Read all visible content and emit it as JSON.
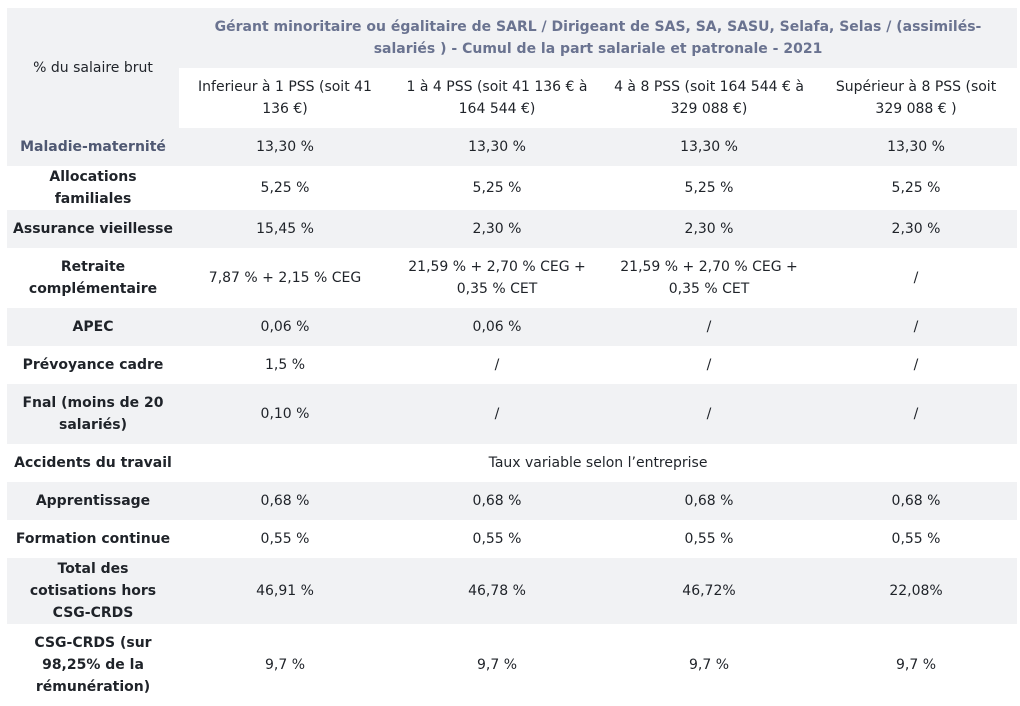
{
  "table": {
    "corner_label": "% du salaire brut",
    "main_header": "Gérant minoritaire ou égalitaire de SARL / Dirigeant de SAS, SA, SASU, Selafa, Selas / (assimilés-salariés ) - Cumul de la part salariale et patronale - 2021",
    "columns": [
      "Inferieur à 1 PSS (soit 41 136 €)",
      "1 à 4 PSS (soit 41 136 € à 164 544 €)",
      "4 à 8 PSS (soit 164 544 € à 329 088 €)",
      "Supérieur à 8 PSS (soit 329 088 € )"
    ],
    "rows": [
      {
        "label": "Maladie-maternité",
        "values": [
          "13,30 %",
          "13,30 %",
          "13,30 %",
          "13,30 %"
        ]
      },
      {
        "label": "Allocations familiales",
        "values": [
          "5,25 %",
          "5,25 %",
          "5,25 %",
          "5,25 %"
        ]
      },
      {
        "label": "Assurance vieillesse",
        "values": [
          "15,45 %",
          "2,30 %",
          "2,30 %",
          "2,30 %"
        ]
      },
      {
        "label": "Retraite complémentaire",
        "values": [
          "7,87 % + 2,15 % CEG",
          "21,59 % + 2,70 % CEG + 0,35 % CET",
          "21,59 % + 2,70 % CEG + 0,35 % CET",
          "/"
        ]
      },
      {
        "label": "APEC",
        "values": [
          "0,06 %",
          "0,06 %",
          "/",
          "/"
        ]
      },
      {
        "label": "Prévoyance cadre",
        "values": [
          "1,5 %",
          "/",
          "/",
          "/"
        ]
      },
      {
        "label": "Fnal (moins de 20 salariés)",
        "values": [
          "0,10 %",
          "/",
          "/",
          "/"
        ]
      },
      {
        "label": "Accidents du travail",
        "merged_value": "Taux variable selon l’entreprise"
      },
      {
        "label": "Apprentissage",
        "values": [
          "0,68 %",
          "0,68 %",
          "0,68 %",
          "0,68 %"
        ]
      },
      {
        "label": "Formation continue",
        "values": [
          "0,55 %",
          "0,55 %",
          "0,55 %",
          "0,55 %"
        ]
      },
      {
        "label": "Total des cotisations hors CSG-CRDS",
        "values": [
          "46,91 %",
          "46,78 %",
          "46,72%",
          "22,08%"
        ]
      },
      {
        "label": "CSG-CRDS (sur 98,25% de la rémunération)",
        "values": [
          "9,7 %",
          "9,7 %",
          "9,7 %",
          "9,7 %"
        ]
      }
    ]
  }
}
